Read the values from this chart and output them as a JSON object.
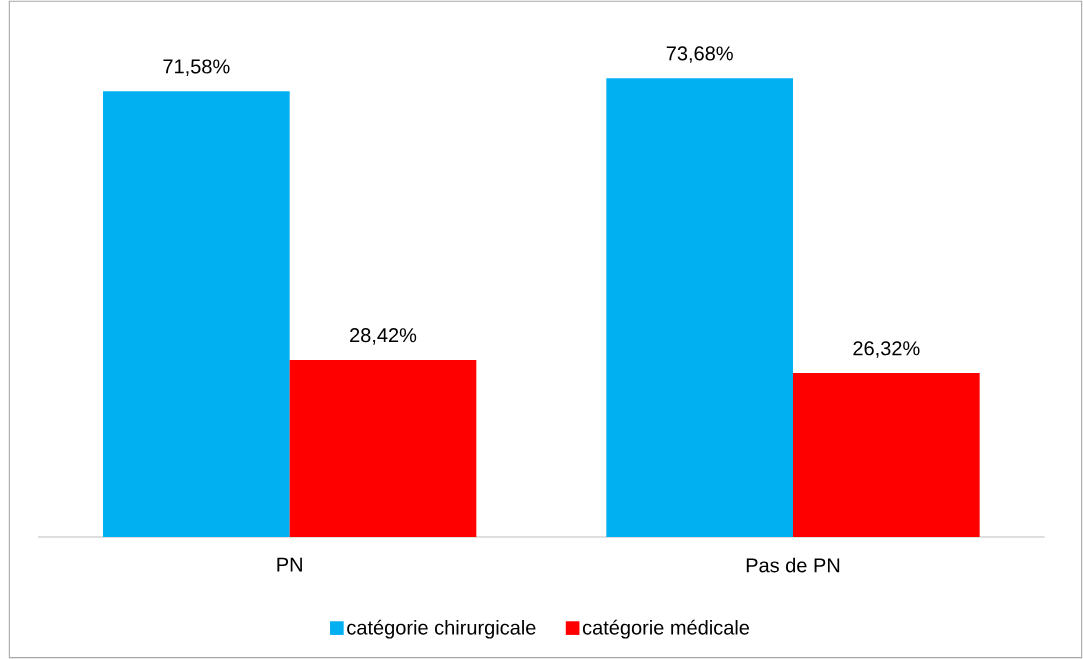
{
  "chart_data": {
    "type": "bar",
    "categories": [
      "PN",
      "Pas de PN"
    ],
    "series": [
      {
        "name": "catégorie chirurgicale",
        "color": "#00b0f0",
        "values": [
          71.58,
          73.68
        ],
        "value_labels": [
          "71,58%",
          "73,68%"
        ]
      },
      {
        "name": "catégorie médicale",
        "color": "#ff0000",
        "values": [
          28.42,
          26.32
        ],
        "value_labels": [
          "28,42%",
          "26,32%"
        ]
      }
    ],
    "legend": "bottom",
    "grid": false
  }
}
